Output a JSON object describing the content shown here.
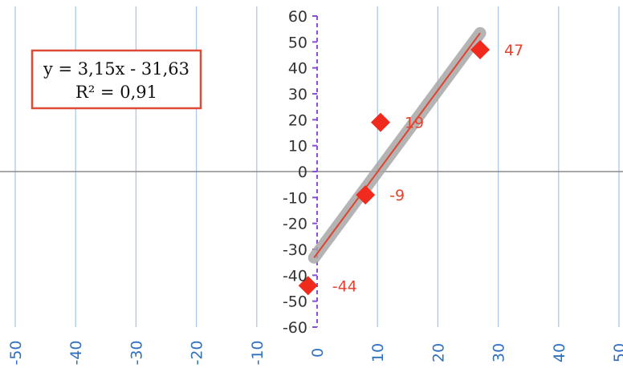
{
  "chart_data": {
    "type": "scatter",
    "title": "",
    "xlabel": "",
    "ylabel": "",
    "xlim": [
      -50,
      50
    ],
    "ylim": [
      -60,
      60
    ],
    "x_ticks": [
      -50,
      -40,
      -30,
      -20,
      -10,
      0,
      10,
      20,
      30,
      40,
      50
    ],
    "y_ticks": [
      60,
      50,
      40,
      30,
      20,
      10,
      0,
      -10,
      -20,
      -30,
      -40,
      -50,
      -60
    ],
    "grid": "vertical",
    "series": [
      {
        "marker": "diamond",
        "color": "#f02a1c",
        "points": [
          {
            "x": -1.5,
            "y": -44,
            "label": "-44"
          },
          {
            "x": 8,
            "y": -9,
            "label": "-9"
          },
          {
            "x": 10.5,
            "y": 19,
            "label": "19"
          },
          {
            "x": 27,
            "y": 47,
            "label": "47"
          }
        ]
      }
    ],
    "trendline": {
      "slope": 3.15,
      "intercept": -31.63,
      "x_range": [
        -0.5,
        27
      ],
      "equation": "y = 3,15x - 31,63",
      "r_squared": "R² = 0,91",
      "color": "#e0442e",
      "highlight_color": "#a7a7a7"
    },
    "colors": {
      "grid": "#a9c8ea",
      "x_axis": "#8c8c8c",
      "y_axis": "#8a4fd8",
      "x_tick_labels": "#2f6fbf",
      "data_labels": "#e8412e",
      "equation_border": "#e04b35"
    }
  }
}
